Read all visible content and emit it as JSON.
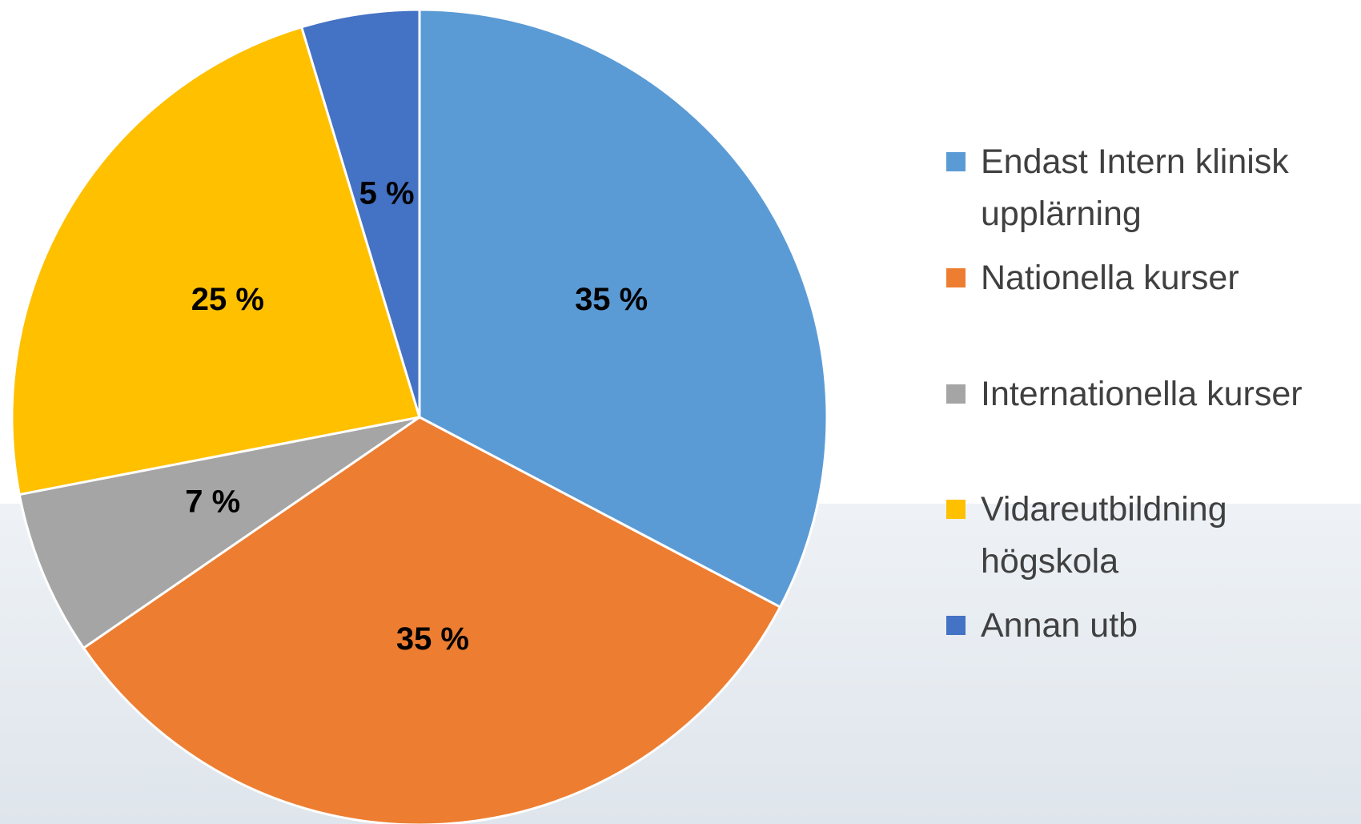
{
  "chart_data": {
    "type": "pie",
    "categories": [
      "Endast Intern klinisk upplärning",
      "Nationella kurser",
      "Internationella kurser",
      "Vidareutbildning högskola",
      "Annan utb"
    ],
    "values": [
      35,
      35,
      7,
      25,
      5
    ],
    "value_labels": [
      "35 %",
      "35 %",
      "7 %",
      "25 %",
      "5 %"
    ],
    "colors": [
      "#5B9BD5",
      "#ED7D31",
      "#A5A5A5",
      "#FFC000",
      "#4472C4"
    ],
    "legend": "right"
  }
}
